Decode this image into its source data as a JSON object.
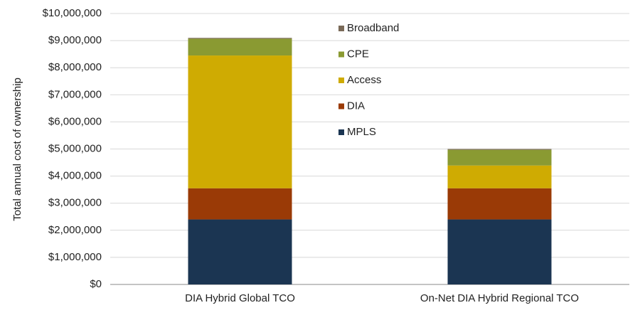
{
  "chart_data": {
    "type": "stacked_bar",
    "y_label": "Total annual cost of ownership",
    "categories": [
      "DIA Hybrid Global TCO",
      "On-Net DIA Hybrid Regional TCO"
    ],
    "series": [
      {
        "name": "MPLS",
        "color": "#1b3552",
        "values": [
          2400000,
          2400000
        ]
      },
      {
        "name": "DIA",
        "color": "#9a3a06",
        "values": [
          1150000,
          1150000
        ]
      },
      {
        "name": "Access",
        "color": "#cfab02",
        "values": [
          4900000,
          840000
        ]
      },
      {
        "name": "CPE",
        "color": "#8a9a32",
        "values": [
          620000,
          580000
        ]
      },
      {
        "name": "Broadband",
        "color": "#7a6a58",
        "values": [
          30000,
          30000
        ]
      }
    ],
    "ylim": [
      0,
      10000000
    ],
    "yticks": [
      {
        "value": 0,
        "label": "$0"
      },
      {
        "value": 1000000,
        "label": "$1,000,000"
      },
      {
        "value": 2000000,
        "label": "$2,000,000"
      },
      {
        "value": 3000000,
        "label": "$3,000,000"
      },
      {
        "value": 4000000,
        "label": "$4,000,000"
      },
      {
        "value": 5000000,
        "label": "$5,000,000"
      },
      {
        "value": 6000000,
        "label": "$6,000,000"
      },
      {
        "value": 7000000,
        "label": "$7,000,000"
      },
      {
        "value": 8000000,
        "label": "$8,000,000"
      },
      {
        "value": 9000000,
        "label": "$9,000,000"
      },
      {
        "value": 10000000,
        "label": "$10,000,000"
      }
    ],
    "grid": true
  }
}
